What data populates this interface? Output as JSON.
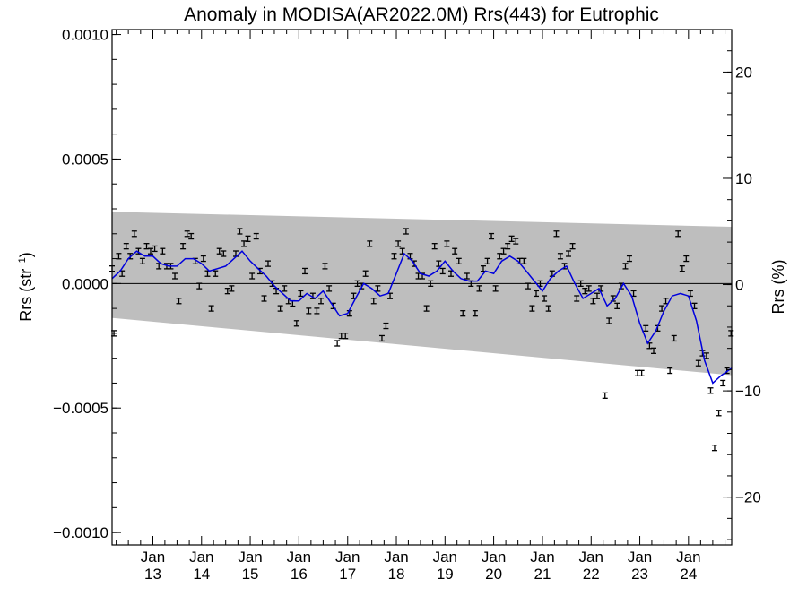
{
  "chart_data": {
    "type": "line",
    "title": "Anomaly in MODISA(AR2022.0M) Rrs(443) for Eutrophic",
    "ylabel_left": {
      "base": "Rrs (str",
      "sup": "−1",
      "close": ")"
    },
    "ylabel_right": "Rrs (%)",
    "x_range": [
      "2012-03-01",
      "2024-11-20"
    ],
    "ylim_left": [
      -0.00105,
      0.00102
    ],
    "ylim_right": [
      -24.5,
      24.0
    ],
    "y_ticks_left": [
      {
        "v": 0.001,
        "label": "0.0010"
      },
      {
        "v": 0.0005,
        "label": "0.0005"
      },
      {
        "v": 0.0,
        "label": "0.0000"
      },
      {
        "v": -0.0005,
        "label": "−0.0005"
      },
      {
        "v": -0.001,
        "label": "−0.0010"
      }
    ],
    "y_ticks_right": [
      {
        "v": 20,
        "label": "20"
      },
      {
        "v": 10,
        "label": "10"
      },
      {
        "v": 0,
        "label": "0"
      },
      {
        "v": -10,
        "label": "−10"
      },
      {
        "v": -20,
        "label": "−20"
      }
    ],
    "x_ticks": [
      {
        "date": "2013-01-01",
        "month": "Jan",
        "year": "13"
      },
      {
        "date": "2014-01-01",
        "month": "Jan",
        "year": "14"
      },
      {
        "date": "2015-01-01",
        "month": "Jan",
        "year": "15"
      },
      {
        "date": "2016-01-01",
        "month": "Jan",
        "year": "16"
      },
      {
        "date": "2017-01-01",
        "month": "Jan",
        "year": "17"
      },
      {
        "date": "2018-01-01",
        "month": "Jan",
        "year": "18"
      },
      {
        "date": "2019-01-01",
        "month": "Jan",
        "year": "19"
      },
      {
        "date": "2020-01-01",
        "month": "Jan",
        "year": "20"
      },
      {
        "date": "2021-01-01",
        "month": "Jan",
        "year": "21"
      },
      {
        "date": "2022-01-01",
        "month": "Jan",
        "year": "22"
      },
      {
        "date": "2023-01-01",
        "month": "Jan",
        "year": "23"
      },
      {
        "date": "2024-01-01",
        "month": "Jan",
        "year": "24"
      }
    ],
    "band": {
      "upper": [
        [
          "2012-03-01",
          0.000288
        ],
        [
          "2024-11-20",
          0.000228
        ]
      ],
      "lower": [
        [
          "2012-03-01",
          -0.000138
        ],
        [
          "2024-11-20",
          -0.000368
        ]
      ]
    },
    "zero_line": 0.0,
    "points": [
      [
        "2012-03-01",
        6e-05
      ],
      [
        "2012-03-15",
        -0.0002
      ],
      [
        "2012-04-20",
        0.00011
      ],
      [
        "2012-05-15",
        4e-05
      ],
      [
        "2012-06-15",
        0.00015
      ],
      [
        "2012-07-15",
        0.00011
      ],
      [
        "2012-08-15",
        0.0002
      ],
      [
        "2012-09-15",
        0.00013
      ],
      [
        "2012-10-15",
        9e-05
      ],
      [
        "2012-11-15",
        0.00015
      ],
      [
        "2012-12-15",
        0.00013
      ],
      [
        "2013-01-15",
        0.00014
      ],
      [
        "2013-02-15",
        7e-05
      ],
      [
        "2013-03-15",
        0.00013
      ],
      [
        "2013-04-15",
        7e-05
      ],
      [
        "2013-05-15",
        7e-05
      ],
      [
        "2013-06-15",
        3e-05
      ],
      [
        "2013-07-15",
        -7e-05
      ],
      [
        "2013-08-15",
        0.00015
      ],
      [
        "2013-09-15",
        0.0002
      ],
      [
        "2013-10-15",
        0.00019
      ],
      [
        "2013-11-15",
        9e-05
      ],
      [
        "2013-12-15",
        -1e-05
      ],
      [
        "2014-01-15",
        0.0001
      ],
      [
        "2014-02-15",
        4e-05
      ],
      [
        "2014-03-15",
        -0.0001
      ],
      [
        "2014-04-15",
        4e-05
      ],
      [
        "2014-05-15",
        0.00013
      ],
      [
        "2014-06-15",
        0.00012
      ],
      [
        "2014-07-15",
        -3e-05
      ],
      [
        "2014-08-15",
        -2e-05
      ],
      [
        "2014-09-15",
        0.00012
      ],
      [
        "2014-10-15",
        0.00021
      ],
      [
        "2014-11-15",
        0.00016
      ],
      [
        "2014-12-15",
        0.00018
      ],
      [
        "2015-01-15",
        3e-05
      ],
      [
        "2015-02-15",
        0.00019
      ],
      [
        "2015-03-15",
        5e-05
      ],
      [
        "2015-04-15",
        -6e-05
      ],
      [
        "2015-05-15",
        8e-05
      ],
      [
        "2015-06-15",
        0.0
      ],
      [
        "2015-07-15",
        -3e-05
      ],
      [
        "2015-08-15",
        -0.0001
      ],
      [
        "2015-09-15",
        -2e-05
      ],
      [
        "2015-10-15",
        -7e-05
      ],
      [
        "2015-11-15",
        -8e-05
      ],
      [
        "2015-12-15",
        -0.00016
      ],
      [
        "2016-01-15",
        -4e-05
      ],
      [
        "2016-02-15",
        5e-05
      ],
      [
        "2016-03-15",
        -0.00011
      ],
      [
        "2016-04-15",
        -5e-05
      ],
      [
        "2016-05-15",
        -0.00011
      ],
      [
        "2016-06-15",
        -7e-05
      ],
      [
        "2016-07-15",
        7e-05
      ],
      [
        "2016-08-15",
        -2e-05
      ],
      [
        "2016-09-15",
        -9e-05
      ],
      [
        "2016-10-15",
        -0.00024
      ],
      [
        "2016-11-15",
        -0.00021
      ],
      [
        "2016-12-15",
        -0.00021
      ],
      [
        "2017-01-15",
        -0.00012
      ],
      [
        "2017-02-15",
        -5e-05
      ],
      [
        "2017-03-15",
        0.0
      ],
      [
        "2017-04-15",
        -1e-05
      ],
      [
        "2017-05-15",
        4e-05
      ],
      [
        "2017-06-15",
        0.00016
      ],
      [
        "2017-07-15",
        -7e-05
      ],
      [
        "2017-08-15",
        -2e-05
      ],
      [
        "2017-09-15",
        -0.00022
      ],
      [
        "2017-10-15",
        -0.00017
      ],
      [
        "2017-11-15",
        -5e-05
      ],
      [
        "2017-12-15",
        0.00011
      ],
      [
        "2018-01-15",
        0.00016
      ],
      [
        "2018-02-15",
        0.00013
      ],
      [
        "2018-03-15",
        0.00021
      ],
      [
        "2018-04-15",
        0.00011
      ],
      [
        "2018-05-15",
        8e-05
      ],
      [
        "2018-06-15",
        3e-05
      ],
      [
        "2018-07-15",
        3e-05
      ],
      [
        "2018-08-15",
        -0.0001
      ],
      [
        "2018-09-15",
        0.0
      ],
      [
        "2018-10-15",
        0.00015
      ],
      [
        "2018-11-15",
        8e-05
      ],
      [
        "2018-12-15",
        5e-05
      ],
      [
        "2019-01-15",
        0.00016
      ],
      [
        "2019-02-15",
        4e-05
      ],
      [
        "2019-03-15",
        0.00013
      ],
      [
        "2019-04-15",
        9e-05
      ],
      [
        "2019-05-15",
        -0.00012
      ],
      [
        "2019-06-15",
        3e-05
      ],
      [
        "2019-07-15",
        0.0
      ],
      [
        "2019-08-15",
        -0.00012
      ],
      [
        "2019-09-15",
        -2e-05
      ],
      [
        "2019-10-15",
        6e-05
      ],
      [
        "2019-11-15",
        9e-05
      ],
      [
        "2019-12-15",
        0.00019
      ],
      [
        "2020-01-15",
        -2e-05
      ],
      [
        "2020-02-15",
        0.00011
      ],
      [
        "2020-03-15",
        0.00013
      ],
      [
        "2020-04-15",
        0.00015
      ],
      [
        "2020-05-15",
        0.00018
      ],
      [
        "2020-06-15",
        0.00017
      ],
      [
        "2020-07-15",
        9e-05
      ],
      [
        "2020-08-15",
        9e-05
      ],
      [
        "2020-09-15",
        -1e-05
      ],
      [
        "2020-10-15",
        -0.0001
      ],
      [
        "2020-11-15",
        -4e-05
      ],
      [
        "2020-12-15",
        0.0
      ],
      [
        "2021-01-15",
        -6e-05
      ],
      [
        "2021-02-15",
        -0.0001
      ],
      [
        "2021-03-15",
        4e-05
      ],
      [
        "2021-04-15",
        0.0002
      ],
      [
        "2021-05-15",
        0.00011
      ],
      [
        "2021-06-15",
        7e-05
      ],
      [
        "2021-07-15",
        0.00012
      ],
      [
        "2021-08-15",
        0.00015
      ],
      [
        "2021-09-15",
        -6e-05
      ],
      [
        "2021-10-15",
        0.0
      ],
      [
        "2021-11-15",
        -3e-05
      ],
      [
        "2021-12-15",
        -2e-05
      ],
      [
        "2022-01-15",
        -7e-05
      ],
      [
        "2022-02-15",
        -5e-05
      ],
      [
        "2022-03-15",
        -2e-05
      ],
      [
        "2022-04-15",
        -0.00045
      ],
      [
        "2022-05-15",
        -0.00015
      ],
      [
        "2022-06-15",
        -6e-05
      ],
      [
        "2022-07-15",
        -9e-05
      ],
      [
        "2022-08-15",
        -1e-05
      ],
      [
        "2022-09-15",
        7e-05
      ],
      [
        "2022-10-15",
        0.0001
      ],
      [
        "2022-11-15",
        -4e-05
      ],
      [
        "2022-12-15",
        -0.00036
      ],
      [
        "2023-01-15",
        -0.00036
      ],
      [
        "2023-02-15",
        -0.00018
      ],
      [
        "2023-03-15",
        -0.00025
      ],
      [
        "2023-04-15",
        -0.00027
      ],
      [
        "2023-05-15",
        -0.00018
      ],
      [
        "2023-06-15",
        -0.0001
      ],
      [
        "2023-07-15",
        -7e-05
      ],
      [
        "2023-08-15",
        -0.00035
      ],
      [
        "2023-09-15",
        -0.00022
      ],
      [
        "2023-10-15",
        0.0002
      ],
      [
        "2023-11-15",
        6e-05
      ],
      [
        "2023-12-15",
        0.0001
      ],
      [
        "2024-01-15",
        -4e-05
      ],
      [
        "2024-02-15",
        -9e-05
      ],
      [
        "2024-03-15",
        -0.00032
      ],
      [
        "2024-04-15",
        -0.00028
      ],
      [
        "2024-05-15",
        -0.00029
      ],
      [
        "2024-06-15",
        -0.00043
      ],
      [
        "2024-07-15",
        -0.00066
      ],
      [
        "2024-08-15",
        -0.00052
      ],
      [
        "2024-09-15",
        -0.0004
      ],
      [
        "2024-10-15",
        -0.00035
      ],
      [
        "2024-11-15",
        -0.0002
      ]
    ],
    "line": [
      [
        "2012-03-01",
        2e-05
      ],
      [
        "2012-05-01",
        5e-05
      ],
      [
        "2012-07-01",
        0.0001
      ],
      [
        "2012-09-01",
        0.00013
      ],
      [
        "2012-11-01",
        0.00011
      ],
      [
        "2013-01-01",
        0.00011
      ],
      [
        "2013-03-01",
        8e-05
      ],
      [
        "2013-05-01",
        7e-05
      ],
      [
        "2013-07-01",
        7e-05
      ],
      [
        "2013-09-01",
        0.0001
      ],
      [
        "2013-11-01",
        0.0001
      ],
      [
        "2014-01-01",
        8e-05
      ],
      [
        "2014-03-01",
        5e-05
      ],
      [
        "2014-05-01",
        6e-05
      ],
      [
        "2014-07-01",
        7e-05
      ],
      [
        "2014-09-01",
        0.0001
      ],
      [
        "2014-11-01",
        0.00013
      ],
      [
        "2015-01-01",
        9e-05
      ],
      [
        "2015-03-01",
        6e-05
      ],
      [
        "2015-05-01",
        3e-05
      ],
      [
        "2015-07-01",
        -1e-05
      ],
      [
        "2015-09-01",
        -4e-05
      ],
      [
        "2015-11-01",
        -7e-05
      ],
      [
        "2016-01-01",
        -7e-05
      ],
      [
        "2016-03-01",
        -4e-05
      ],
      [
        "2016-05-01",
        -6e-05
      ],
      [
        "2016-07-01",
        -3e-05
      ],
      [
        "2016-09-01",
        -8e-05
      ],
      [
        "2016-11-01",
        -0.00013
      ],
      [
        "2017-01-01",
        -0.00012
      ],
      [
        "2017-03-01",
        -6e-05
      ],
      [
        "2017-05-01",
        0.0
      ],
      [
        "2017-07-01",
        -2e-05
      ],
      [
        "2017-09-01",
        -5e-05
      ],
      [
        "2017-11-01",
        -4e-05
      ],
      [
        "2018-01-01",
        4e-05
      ],
      [
        "2018-03-01",
        0.00012
      ],
      [
        "2018-05-01",
        9e-05
      ],
      [
        "2018-07-01",
        4e-05
      ],
      [
        "2018-09-01",
        3e-05
      ],
      [
        "2018-11-01",
        5e-05
      ],
      [
        "2019-01-01",
        9e-05
      ],
      [
        "2019-03-01",
        5e-05
      ],
      [
        "2019-05-01",
        2e-05
      ],
      [
        "2019-07-01",
        1e-05
      ],
      [
        "2019-09-01",
        1e-05
      ],
      [
        "2019-11-01",
        5e-05
      ],
      [
        "2020-01-01",
        4e-05
      ],
      [
        "2020-03-01",
        9e-05
      ],
      [
        "2020-05-01",
        0.00011
      ],
      [
        "2020-07-01",
        9e-05
      ],
      [
        "2020-09-01",
        5e-05
      ],
      [
        "2020-11-01",
        1e-05
      ],
      [
        "2021-01-01",
        -3e-05
      ],
      [
        "2021-03-01",
        2e-05
      ],
      [
        "2021-05-01",
        5e-05
      ],
      [
        "2021-07-01",
        7e-05
      ],
      [
        "2021-09-01",
        0.0
      ],
      [
        "2021-11-01",
        -6e-05
      ],
      [
        "2022-01-01",
        -4e-05
      ],
      [
        "2022-03-01",
        -2e-05
      ],
      [
        "2022-05-01",
        -9e-05
      ],
      [
        "2022-07-01",
        -6e-05
      ],
      [
        "2022-09-01",
        0.0
      ],
      [
        "2022-11-01",
        -5e-05
      ],
      [
        "2023-01-01",
        -0.00016
      ],
      [
        "2023-03-01",
        -0.00024
      ],
      [
        "2023-05-01",
        -0.00019
      ],
      [
        "2023-07-01",
        -0.00011
      ],
      [
        "2023-09-01",
        -5e-05
      ],
      [
        "2023-11-01",
        -4e-05
      ],
      [
        "2024-01-01",
        -5e-05
      ],
      [
        "2024-03-01",
        -0.00015
      ],
      [
        "2024-05-01",
        -0.00031
      ],
      [
        "2024-07-01",
        -0.0004
      ],
      [
        "2024-09-01",
        -0.00037
      ],
      [
        "2024-11-20",
        -0.00034
      ]
    ],
    "colors": {
      "band": "#bebebe",
      "line": "#0000dd",
      "points": "#000000",
      "axes": "#000000",
      "background": "#ffffff"
    },
    "grid": false,
    "legend": "none"
  }
}
